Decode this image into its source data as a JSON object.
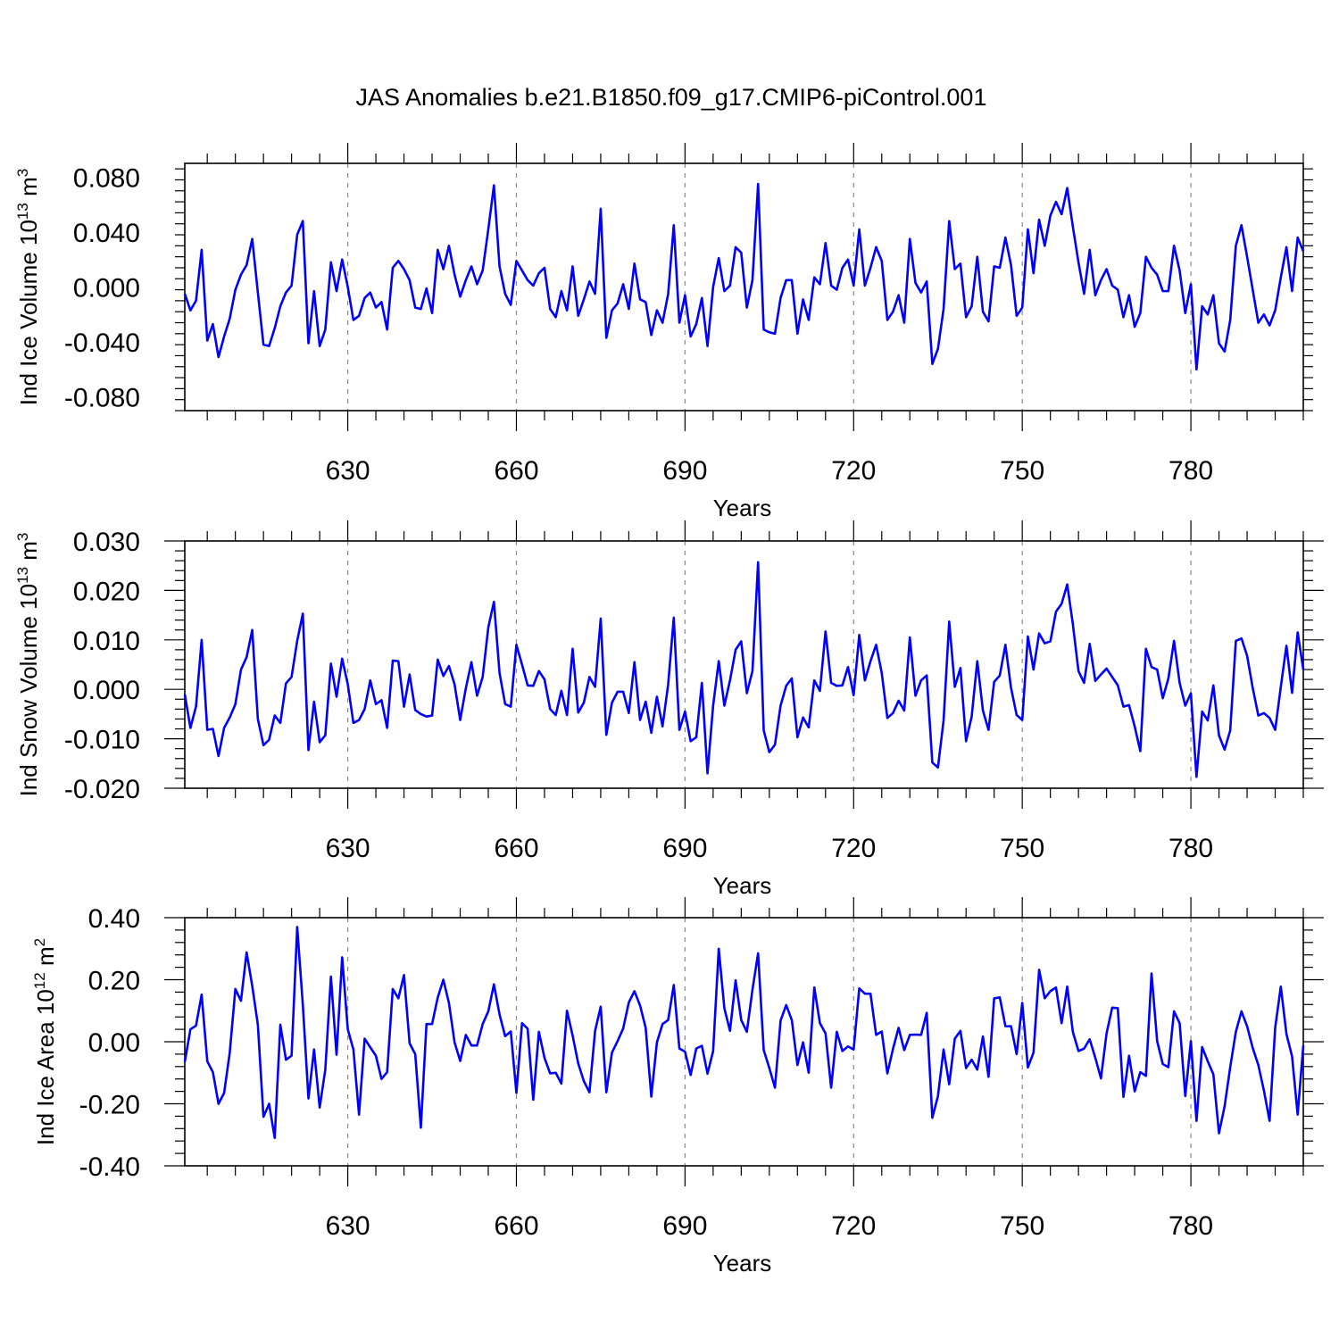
{
  "figure": {
    "title": "JAS Anomalies b.e21.B1850.f09_g17.CMIP6-piControl.001"
  },
  "chart_data": [
    {
      "type": "line",
      "title": "",
      "xlabel": "Years",
      "ylabel_base": "Ind Ice Volume 10",
      "ylabel_exp": "13",
      "ylabel_unit": " m",
      "ylabel_unit_exp": "3",
      "xlim": [
        601,
        800
      ],
      "ylim": [
        -0.09,
        0.09
      ],
      "xticks": [
        630,
        660,
        690,
        720,
        750,
        780
      ],
      "xtick_labels": [
        "630",
        "660",
        "690",
        "720",
        "750",
        "780"
      ],
      "yticks": [
        -0.08,
        -0.04,
        0.0,
        0.04,
        0.08
      ],
      "ytick_labels": [
        "-0.080",
        "-0.040",
        "0.000",
        "0.040",
        "0.080"
      ],
      "x_start": 601,
      "series": [
        {
          "name": "Ind Ice Volume",
          "color": "#0000ff",
          "values": [
            -0.005,
            -0.017,
            -0.01,
            0.027,
            -0.039,
            -0.027,
            -0.051,
            -0.036,
            -0.023,
            -0.002,
            0.009,
            0.016,
            0.035,
            -0.004,
            -0.042,
            -0.043,
            -0.03,
            -0.014,
            -0.004,
            0.001,
            0.038,
            0.048,
            -0.041,
            -0.003,
            -0.043,
            -0.031,
            0.018,
            -0.003,
            0.02,
            0.0,
            -0.024,
            -0.021,
            -0.008,
            -0.004,
            -0.015,
            -0.011,
            -0.031,
            0.014,
            0.019,
            0.013,
            0.005,
            -0.015,
            -0.016,
            -0.001,
            -0.019,
            0.027,
            0.013,
            0.03,
            0.009,
            -0.007,
            0.005,
            0.015,
            0.002,
            0.012,
            0.042,
            0.074,
            0.015,
            -0.005,
            -0.013,
            0.019,
            0.012,
            0.005,
            0.001,
            0.01,
            0.014,
            -0.016,
            -0.022,
            -0.003,
            -0.017,
            0.015,
            -0.021,
            -0.009,
            0.004,
            -0.005,
            0.057,
            -0.037,
            -0.017,
            -0.012,
            0.002,
            -0.016,
            0.017,
            -0.009,
            -0.011,
            -0.035,
            -0.017,
            -0.026,
            -0.005,
            0.045,
            -0.026,
            -0.006,
            -0.036,
            -0.027,
            -0.008,
            -0.043,
            0.0,
            0.021,
            -0.003,
            0.001,
            0.029,
            0.025,
            -0.015,
            0.005,
            0.075,
            -0.031,
            -0.033,
            -0.034,
            -0.008,
            0.005,
            0.005,
            -0.034,
            -0.009,
            -0.024,
            0.007,
            0.002,
            0.032,
            0.001,
            -0.002,
            0.014,
            0.02,
            0.001,
            0.042,
            0.001,
            0.014,
            0.029,
            0.019,
            -0.024,
            -0.018,
            -0.006,
            -0.026,
            0.035,
            0.003,
            -0.004,
            0.004,
            -0.056,
            -0.045,
            -0.016,
            0.048,
            0.013,
            0.017,
            -0.022,
            -0.014,
            0.022,
            -0.018,
            -0.025,
            0.015,
            0.014,
            0.036,
            0.016,
            -0.021,
            -0.015,
            0.042,
            0.01,
            0.049,
            0.03,
            0.052,
            0.062,
            0.053,
            0.072,
            0.044,
            0.018,
            -0.005,
            0.027,
            -0.006,
            0.005,
            0.013,
            0.001,
            -0.002,
            -0.022,
            -0.006,
            -0.029,
            -0.019,
            0.022,
            0.014,
            0.009,
            -0.003,
            -0.003,
            0.03,
            0.012,
            -0.019,
            0.002,
            -0.06,
            -0.014,
            -0.02,
            -0.006,
            -0.041,
            -0.047,
            -0.024,
            0.03,
            0.045,
            0.022,
            -0.002,
            -0.026,
            -0.02,
            -0.028,
            -0.017,
            0.007,
            0.029,
            -0.003,
            0.036,
            0.026
          ]
        }
      ]
    },
    {
      "type": "line",
      "title": "",
      "xlabel": "Years",
      "ylabel_base": "Ind Snow Volume 10",
      "ylabel_exp": "13",
      "ylabel_unit": " m",
      "ylabel_unit_exp": "3",
      "xlim": [
        601,
        800
      ],
      "ylim": [
        -0.02,
        0.03
      ],
      "xticks": [
        630,
        660,
        690,
        720,
        750,
        780
      ],
      "xtick_labels": [
        "630",
        "660",
        "690",
        "720",
        "750",
        "780"
      ],
      "yticks": [
        -0.02,
        -0.01,
        0.0,
        0.01,
        0.02,
        0.03
      ],
      "ytick_labels": [
        "-0.020",
        "-0.010",
        "0.000",
        "0.010",
        "0.020",
        "0.030"
      ],
      "x_start": 601,
      "series": [
        {
          "name": "Ind Snow Volume",
          "color": "#0000ff",
          "values": [
            -0.001,
            -0.0078,
            -0.0035,
            0.01,
            -0.0082,
            -0.008,
            -0.0135,
            -0.0078,
            -0.0057,
            -0.003,
            0.004,
            0.0065,
            0.012,
            -0.006,
            -0.0113,
            -0.0102,
            -0.0053,
            -0.0068,
            0.0012,
            0.0025,
            0.0098,
            0.0153,
            -0.0123,
            -0.0025,
            -0.0107,
            -0.0093,
            0.0052,
            -0.0015,
            0.0062,
            0.001,
            -0.0068,
            -0.0062,
            -0.004,
            0.0018,
            -0.003,
            -0.0022,
            -0.0078,
            0.0058,
            0.0057,
            -0.0035,
            0.003,
            -0.0042,
            -0.005,
            -0.0055,
            -0.0053,
            0.006,
            0.0027,
            0.0047,
            0.001,
            -0.0062,
            0.0002,
            0.0055,
            -0.0013,
            0.0025,
            0.0125,
            0.0177,
            0.0033,
            -0.003,
            -0.0035,
            0.009,
            0.005,
            0.0008,
            0.0007,
            0.0037,
            0.002,
            -0.004,
            -0.0052,
            -0.0003,
            -0.0052,
            0.0082,
            -0.0047,
            -0.0027,
            0.0025,
            0.0005,
            0.0143,
            -0.0092,
            -0.0027,
            -0.0005,
            -0.0005,
            -0.0048,
            0.0055,
            -0.0062,
            -0.0025,
            -0.0088,
            -0.0015,
            -0.0075,
            0.001,
            0.0145,
            -0.0082,
            -0.0045,
            -0.0105,
            -0.0097,
            0.0013,
            -0.017,
            -0.0033,
            0.0057,
            -0.0033,
            0.0018,
            0.008,
            0.0097,
            -0.0008,
            0.0037,
            0.0257,
            -0.0083,
            -0.0127,
            -0.0112,
            -0.0033,
            0.0007,
            0.0022,
            -0.0097,
            -0.0057,
            -0.0077,
            0.0018,
            -0.0003,
            0.0117,
            0.0013,
            0.0007,
            0.0008,
            0.0045,
            -0.0012,
            0.011,
            0.0018,
            0.0057,
            0.009,
            0.0033,
            -0.0058,
            -0.0048,
            -0.0023,
            -0.0043,
            0.0105,
            -0.0013,
            0.0018,
            0.0028,
            -0.0148,
            -0.0158,
            -0.0063,
            0.0137,
            0.0005,
            0.0043,
            -0.0105,
            -0.0055,
            0.0057,
            -0.0043,
            -0.0082,
            0.0015,
            0.0028,
            0.009,
            0.0003,
            -0.0052,
            -0.0062,
            0.0107,
            0.004,
            0.0113,
            0.0093,
            0.0097,
            0.0157,
            0.0173,
            0.0212,
            0.0132,
            0.0037,
            0.0013,
            0.0092,
            0.0017,
            0.003,
            0.0042,
            0.0025,
            0.0008,
            -0.0035,
            -0.0032,
            -0.0075,
            -0.0125,
            0.0082,
            0.0045,
            0.004,
            -0.0018,
            0.0022,
            0.0098,
            0.0013,
            -0.0033,
            -0.0008,
            -0.0177,
            -0.0045,
            -0.0063,
            0.0008,
            -0.0093,
            -0.0122,
            -0.0083,
            0.0098,
            0.0103,
            0.0068,
            0.0003,
            -0.0053,
            -0.0048,
            -0.0058,
            -0.0082,
            0.0005,
            0.0088,
            -0.0007,
            0.0115,
            0.004
          ]
        }
      ]
    },
    {
      "type": "line",
      "title": "",
      "xlabel": "Years",
      "ylabel_base": "Ind Ice Area 10",
      "ylabel_exp": "12",
      "ylabel_unit": " m",
      "ylabel_unit_exp": "2",
      "xlim": [
        601,
        800
      ],
      "ylim": [
        -0.4,
        0.4
      ],
      "xticks": [
        630,
        660,
        690,
        720,
        750,
        780
      ],
      "xtick_labels": [
        "630",
        "660",
        "690",
        "720",
        "750",
        "780"
      ],
      "yticks": [
        -0.4,
        -0.2,
        0.0,
        0.2,
        0.4
      ],
      "ytick_labels": [
        "-0.40",
        "-0.20",
        "0.00",
        "0.20",
        "0.40"
      ],
      "x_start": 601,
      "series": [
        {
          "name": "Ind Ice Area",
          "color": "#0000ff",
          "values": [
            -0.065,
            0.04,
            0.052,
            0.152,
            -0.063,
            -0.098,
            -0.2,
            -0.165,
            -0.035,
            0.17,
            0.132,
            0.288,
            0.18,
            0.055,
            -0.242,
            -0.2,
            -0.31,
            0.055,
            -0.058,
            -0.045,
            0.37,
            0.12,
            -0.183,
            -0.025,
            -0.212,
            -0.09,
            0.21,
            -0.042,
            0.272,
            0.04,
            -0.025,
            -0.235,
            0.01,
            -0.018,
            -0.045,
            -0.12,
            -0.098,
            0.17,
            0.14,
            0.215,
            -0.005,
            -0.04,
            -0.277,
            0.057,
            0.057,
            0.142,
            0.2,
            0.125,
            -0.002,
            -0.062,
            0.022,
            -0.012,
            -0.012,
            0.057,
            0.098,
            0.185,
            0.088,
            0.018,
            0.033,
            -0.165,
            0.06,
            0.042,
            -0.187,
            0.032,
            -0.052,
            -0.102,
            -0.1,
            -0.135,
            0.1,
            0.02,
            -0.07,
            -0.127,
            -0.163,
            0.035,
            0.113,
            -0.163,
            -0.035,
            0.002,
            0.043,
            0.127,
            0.163,
            0.117,
            0.045,
            -0.177,
            -0.002,
            0.057,
            0.07,
            0.183,
            -0.022,
            -0.032,
            -0.107,
            -0.022,
            -0.013,
            -0.103,
            -0.03,
            0.3,
            0.108,
            0.035,
            0.198,
            0.07,
            0.032,
            0.168,
            0.285,
            -0.027,
            -0.085,
            -0.148,
            0.068,
            0.118,
            0.07,
            -0.075,
            -0.002,
            -0.1,
            0.175,
            0.06,
            0.027,
            -0.148,
            0.032,
            -0.03,
            -0.015,
            -0.025,
            0.172,
            0.155,
            0.155,
            0.022,
            0.033,
            -0.102,
            -0.023,
            0.045,
            -0.027,
            0.022,
            0.023,
            0.022,
            0.093,
            -0.245,
            -0.175,
            -0.025,
            -0.137,
            0.01,
            0.035,
            -0.085,
            -0.058,
            -0.09,
            0.017,
            -0.113,
            0.14,
            0.143,
            0.05,
            0.05,
            -0.04,
            0.125,
            -0.083,
            -0.035,
            0.232,
            0.14,
            0.163,
            0.175,
            0.06,
            0.178,
            0.032,
            -0.03,
            -0.022,
            0.008,
            -0.052,
            -0.118,
            0.027,
            0.11,
            0.108,
            -0.178,
            -0.045,
            -0.16,
            -0.098,
            -0.11,
            0.22,
            0.002,
            -0.072,
            -0.082,
            0.098,
            0.06,
            -0.175,
            0.002,
            -0.255,
            -0.017,
            -0.063,
            -0.105,
            -0.295,
            -0.208,
            -0.082,
            0.032,
            0.098,
            0.05,
            -0.02,
            -0.075,
            -0.158,
            -0.255,
            0.045,
            0.178,
            0.025,
            -0.047,
            -0.235,
            -0.012
          ]
        }
      ]
    }
  ]
}
